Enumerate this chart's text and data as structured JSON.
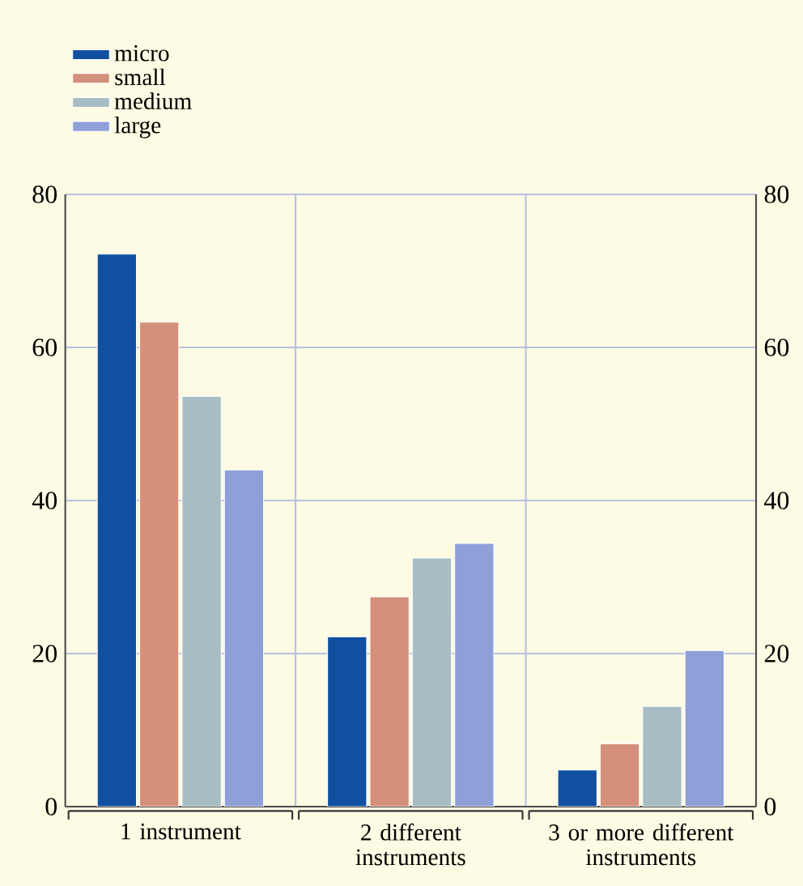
{
  "chart_data": {
    "type": "bar",
    "categories": [
      "1 instrument",
      "2 different instruments",
      "3 or more different instruments"
    ],
    "series": [
      {
        "name": "micro",
        "color": "#1150a0",
        "values": [
          72.2,
          22.2,
          4.8
        ]
      },
      {
        "name": "small",
        "color": "#d4907a",
        "values": [
          63.3,
          27.4,
          8.2
        ]
      },
      {
        "name": "medium",
        "color": "#a8bcc4",
        "values": [
          53.6,
          32.5,
          13.1
        ]
      },
      {
        "name": "large",
        "color": "#8f9fd8",
        "values": [
          44.0,
          34.4,
          20.4
        ]
      }
    ],
    "ylim": [
      0,
      80
    ],
    "yticks": [
      0,
      20,
      40,
      60,
      80
    ],
    "y2lim": [
      0,
      80
    ],
    "y2ticks": [
      0,
      20,
      40,
      60,
      80
    ],
    "grid": true,
    "legend": "top left"
  }
}
